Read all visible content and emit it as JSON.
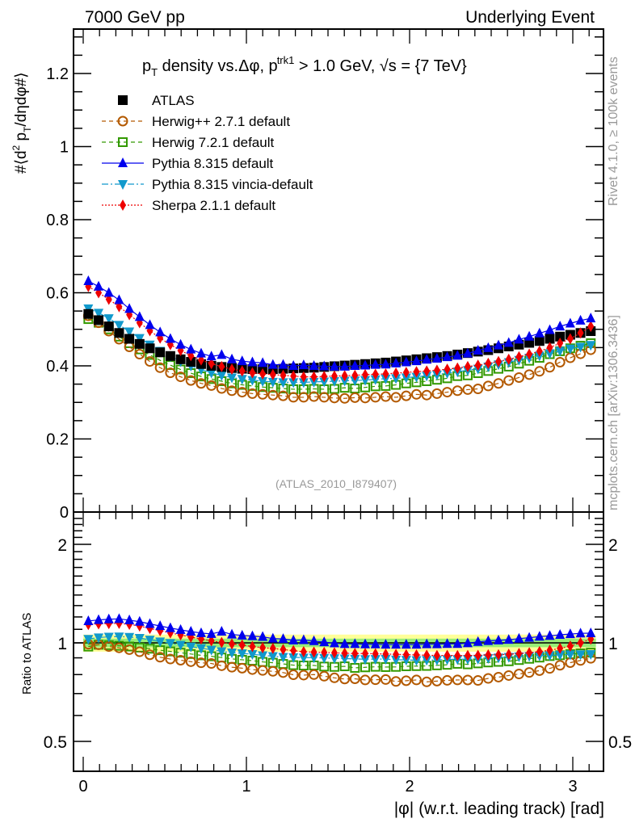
{
  "header": {
    "left": "7000 GeV pp",
    "right": "Underlying Event"
  },
  "side_labels": {
    "rivet": "Rivet 4.1.0, ≥ 100k events",
    "mcplots": "mcplots.cern.ch [arXiv:1306.3436]"
  },
  "analysis_id": "(ATLAS_2010_I879407)",
  "chart_data": [
    {
      "type": "scatter",
      "panel": "main",
      "title": "p_T density vs.Δφ, p_T^trk1 > 1.0 GeV, √s = {7 TeV}",
      "title_parts": {
        "p": "p",
        "sub_T": "T",
        "mid": " density vs.Δφ, p",
        "sup_trk1": "trk1",
        "end": " > 1.0 GeV, √s = {7 TeV}"
      },
      "ylabel": "#⟨d² p_T/dηdφ#⟩",
      "ylabel_parts": {
        "a": "#⟨d",
        "sup2": "2",
        "b": " p",
        "subT": "T",
        "c": "/dηdφ#⟩"
      },
      "xlabel": "",
      "xlim": [
        -0.05,
        3.2
      ],
      "ylim": [
        0,
        1.32
      ],
      "yticks": [
        0,
        0.2,
        0.4,
        0.6,
        0.8,
        1,
        1.2
      ],
      "ytick_labels": [
        "0",
        "0.2",
        "0.4",
        "0.6",
        "0.8",
        "1",
        "1.2"
      ],
      "legend_position": "top-left",
      "x_bins": 50,
      "x_max": 3.14159,
      "series": [
        {
          "name": "ATLAS",
          "color": "#000000",
          "marker": "square-filled",
          "line": "none",
          "values": [
            0.542,
            0.525,
            0.508,
            0.49,
            0.474,
            0.46,
            0.448,
            0.437,
            0.427,
            0.418,
            0.411,
            0.405,
            0.4,
            0.397,
            0.394,
            0.392,
            0.391,
            0.391,
            0.391,
            0.392,
            0.393,
            0.394,
            0.395,
            0.397,
            0.399,
            0.401,
            0.403,
            0.405,
            0.407,
            0.409,
            0.412,
            0.415,
            0.418,
            0.421,
            0.424,
            0.427,
            0.431,
            0.435,
            0.439,
            0.443,
            0.448,
            0.453,
            0.458,
            0.463,
            0.468,
            0.474,
            0.48,
            0.485,
            0.49,
            0.495
          ]
        },
        {
          "name": "Herwig++ 2.7.1 default",
          "color": "#b35900",
          "marker": "circle-open",
          "line": "dashed",
          "values": [
            0.537,
            0.518,
            0.495,
            0.473,
            0.452,
            0.432,
            0.412,
            0.395,
            0.381,
            0.37,
            0.36,
            0.352,
            0.346,
            0.338,
            0.332,
            0.328,
            0.324,
            0.322,
            0.32,
            0.318,
            0.314,
            0.314,
            0.316,
            0.314,
            0.312,
            0.311,
            0.313,
            0.312,
            0.314,
            0.316,
            0.314,
            0.318,
            0.322,
            0.32,
            0.324,
            0.328,
            0.332,
            0.335,
            0.337,
            0.345,
            0.352,
            0.36,
            0.368,
            0.376,
            0.385,
            0.396,
            0.41,
            0.422,
            0.433,
            0.444
          ]
        },
        {
          "name": "Herwig 7.2.1 default",
          "color": "#339900",
          "marker": "square-open",
          "line": "dashed",
          "values": [
            0.528,
            0.518,
            0.5,
            0.48,
            0.462,
            0.445,
            0.43,
            0.415,
            0.402,
            0.39,
            0.38,
            0.371,
            0.364,
            0.358,
            0.352,
            0.348,
            0.345,
            0.342,
            0.34,
            0.338,
            0.336,
            0.336,
            0.337,
            0.336,
            0.337,
            0.34,
            0.338,
            0.341,
            0.344,
            0.345,
            0.348,
            0.352,
            0.355,
            0.358,
            0.362,
            0.366,
            0.372,
            0.374,
            0.38,
            0.386,
            0.392,
            0.398,
            0.406,
            0.414,
            0.422,
            0.432,
            0.44,
            0.448,
            0.455,
            0.462
          ]
        },
        {
          "name": "Pythia 8.315 default",
          "color": "#0000ee",
          "marker": "triangle-up",
          "line": "solid",
          "values": [
            0.632,
            0.617,
            0.6,
            0.58,
            0.556,
            0.534,
            0.512,
            0.492,
            0.474,
            0.458,
            0.445,
            0.434,
            0.426,
            0.43,
            0.418,
            0.413,
            0.41,
            0.408,
            0.403,
            0.403,
            0.4,
            0.402,
            0.4,
            0.399,
            0.398,
            0.398,
            0.4,
            0.401,
            0.403,
            0.404,
            0.407,
            0.41,
            0.413,
            0.417,
            0.42,
            0.424,
            0.428,
            0.434,
            0.442,
            0.449,
            0.456,
            0.463,
            0.472,
            0.48,
            0.489,
            0.498,
            0.508,
            0.516,
            0.524,
            0.53
          ]
        },
        {
          "name": "Pythia 8.315 vincia-default",
          "color": "#1199cc",
          "marker": "triangle-down",
          "line": "dashdot",
          "values": [
            0.557,
            0.545,
            0.53,
            0.512,
            0.494,
            0.476,
            0.458,
            0.441,
            0.426,
            0.412,
            0.4,
            0.39,
            0.381,
            0.374,
            0.368,
            0.364,
            0.361,
            0.358,
            0.356,
            0.355,
            0.355,
            0.355,
            0.356,
            0.357,
            0.358,
            0.359,
            0.36,
            0.361,
            0.363,
            0.365,
            0.366,
            0.368,
            0.37,
            0.373,
            0.376,
            0.38,
            0.384,
            0.388,
            0.392,
            0.398,
            0.404,
            0.41,
            0.416,
            0.422,
            0.428,
            0.434,
            0.441,
            0.447,
            0.452,
            0.457
          ]
        },
        {
          "name": "Sherpa 2.1.1 default",
          "color": "#ee0000",
          "marker": "diamond",
          "line": "dotted",
          "values": [
            0.617,
            0.6,
            0.582,
            0.562,
            0.54,
            0.518,
            0.496,
            0.476,
            0.458,
            0.442,
            0.428,
            0.416,
            0.406,
            0.398,
            0.391,
            0.386,
            0.381,
            0.378,
            0.376,
            0.374,
            0.372,
            0.37,
            0.37,
            0.371,
            0.372,
            0.373,
            0.374,
            0.376,
            0.377,
            0.378,
            0.38,
            0.382,
            0.384,
            0.386,
            0.388,
            0.391,
            0.394,
            0.398,
            0.402,
            0.407,
            0.412,
            0.418,
            0.425,
            0.432,
            0.44,
            0.45,
            0.462,
            0.474,
            0.49,
            0.508
          ]
        }
      ]
    },
    {
      "type": "scatter",
      "panel": "ratio",
      "ylabel": "Ratio to ATLAS",
      "xlabel": "|φ| (w.r.t. leading track) [rad]",
      "xlim": [
        -0.05,
        3.2
      ],
      "xticks": [
        0,
        1,
        2,
        3
      ],
      "xtick_labels": [
        "0",
        "1",
        "2",
        "3"
      ],
      "ylim": [
        0.42,
        2.45
      ],
      "yscale": "log",
      "yticks": [
        0.5,
        1,
        2
      ],
      "ytick_labels": [
        "0.5",
        "1",
        "2"
      ],
      "band_inner": 0.03,
      "band_outer": 0.06,
      "band_inner_color": "#99ee77",
      "band_outer_color": "#ffff99",
      "reference_line": 1
    }
  ]
}
